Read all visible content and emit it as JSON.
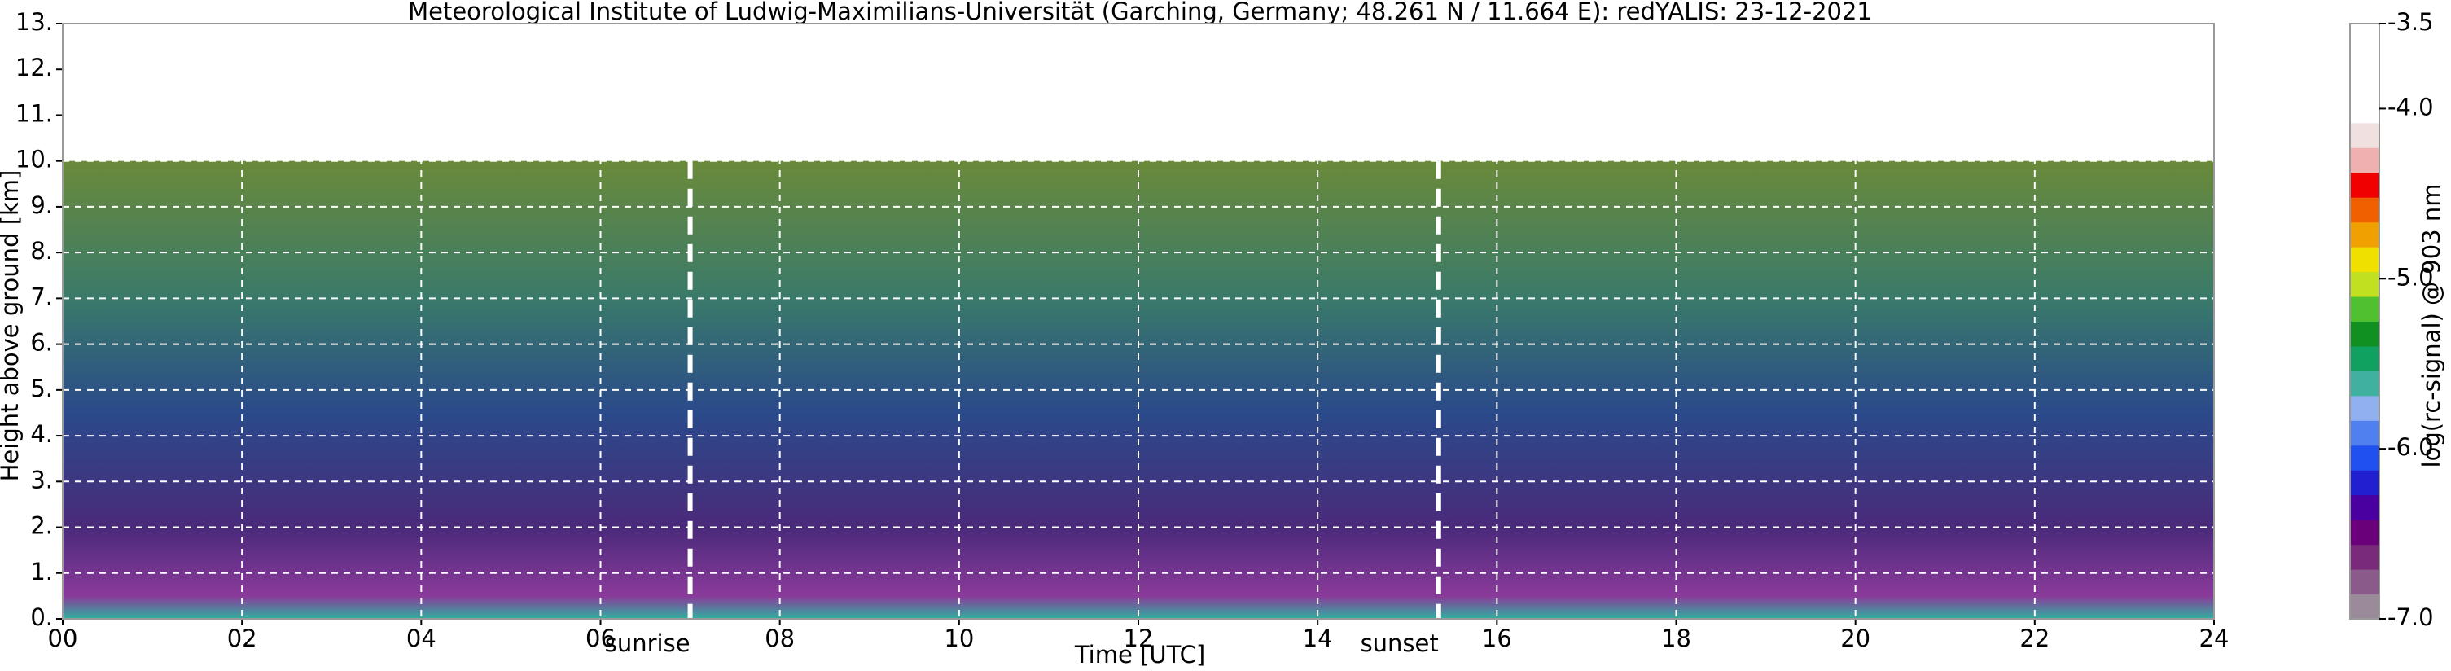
{
  "chart_data": {
    "type": "heatmap",
    "title": "Meteorological Institute of Ludwig-Maximilians-Universität (Garching, Germany; 48.261 N / 11.664 E):    redYALIS: 23-12-2021",
    "x_label": "Time [UTC]",
    "y_label": "Height above ground [km]",
    "xlim": [
      0,
      24
    ],
    "xticks": [
      {
        "value": 0,
        "label": "00"
      },
      {
        "value": 2,
        "label": "02"
      },
      {
        "value": 4,
        "label": "04"
      },
      {
        "value": 6,
        "label": "06"
      },
      {
        "value": 8,
        "label": "08"
      },
      10,
      12,
      14,
      16,
      18,
      20,
      22,
      24
    ],
    "ylim": [
      0,
      13
    ],
    "yticks": [
      {
        "value": 0,
        "label": "0."
      },
      {
        "value": 1,
        "label": "1."
      },
      {
        "value": 2,
        "label": "2."
      },
      {
        "value": 3,
        "label": "3."
      },
      {
        "value": 4,
        "label": "4."
      },
      {
        "value": 5,
        "label": "5."
      },
      {
        "value": 6,
        "label": "6."
      },
      {
        "value": 7,
        "label": "7."
      },
      {
        "value": 8,
        "label": "8."
      },
      {
        "value": 9,
        "label": "9."
      },
      {
        "value": 10,
        "label": "10."
      },
      {
        "value": 11,
        "label": "11."
      },
      {
        "value": 12,
        "label": "12."
      },
      {
        "value": 13,
        "label": "13."
      }
    ],
    "grid": true,
    "signal_top": 10,
    "annotations": [
      {
        "x": 7.0,
        "label": "sunrise"
      },
      {
        "x": 15.35,
        "label": "sunset"
      }
    ],
    "colorbar": {
      "label": "log(rc-signal) @ 903 nm",
      "lim": [
        -7.0,
        -3.5
      ],
      "ticks": [
        {
          "value": -7.0,
          "label": "-7.0"
        },
        {
          "value": -6.0,
          "label": "-6.0"
        },
        {
          "value": -5.0,
          "label": "-5.0"
        },
        {
          "value": -4.0,
          "label": "-4.0"
        },
        {
          "value": -3.5,
          "label": "-3.5"
        }
      ],
      "colors": [
        "#9a8a9a",
        "#8a5a8a",
        "#7a2a7a",
        "#6a007a",
        "#4a00a0",
        "#2020d0",
        "#2050f0",
        "#5080f0",
        "#90b0f0",
        "#40b0a0",
        "#10a060",
        "#109020",
        "#50c030",
        "#c0e020",
        "#f0e000",
        "#f0a000",
        "#f06000",
        "#f00000",
        "#f0b0b0",
        "#f0e0e0",
        "#ffffff",
        "#ffffff",
        "#ffffff",
        "#ffffff"
      ]
    }
  }
}
